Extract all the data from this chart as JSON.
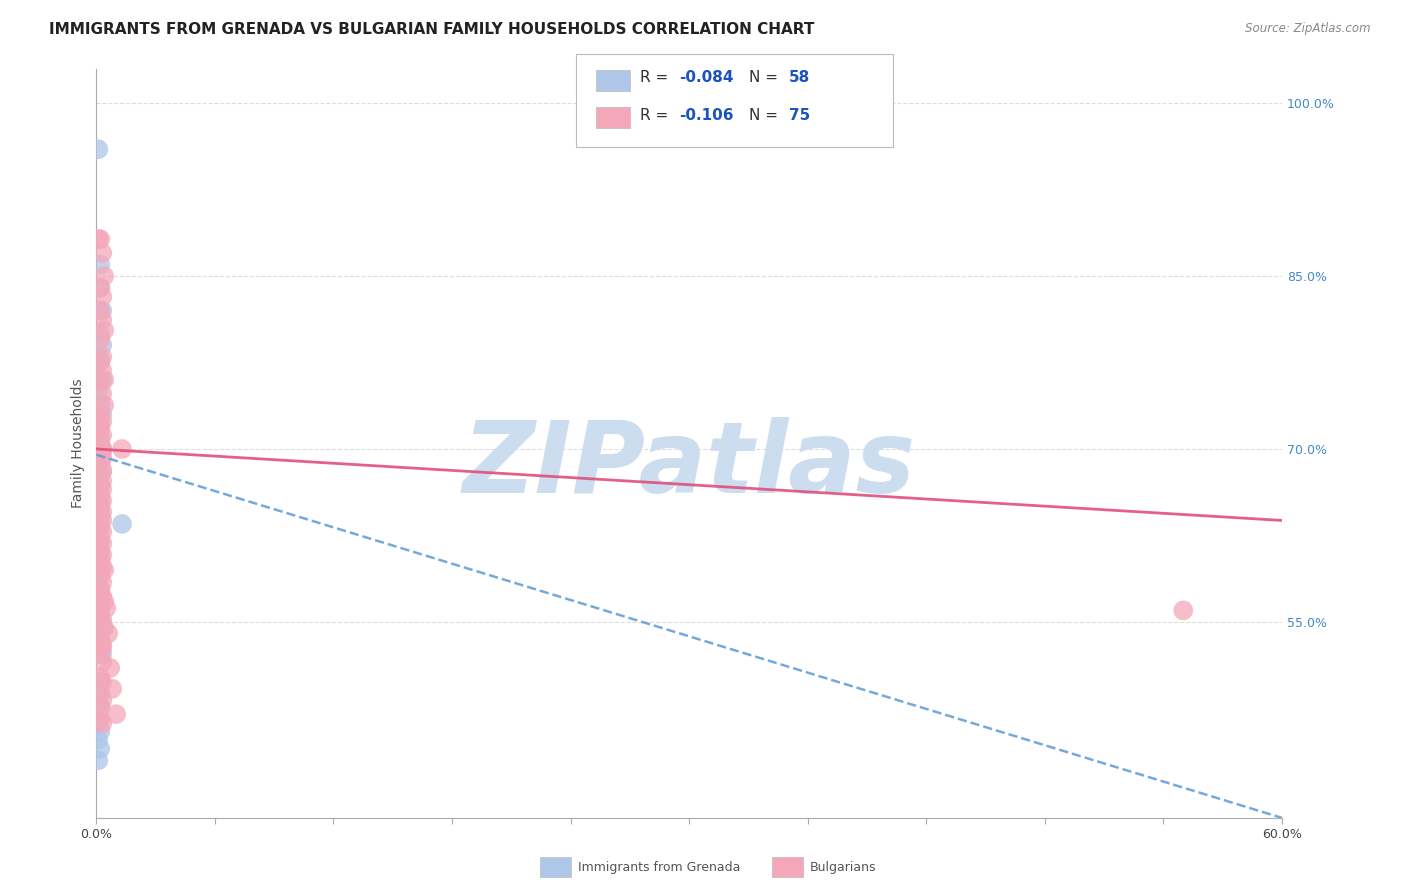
{
  "title": "IMMIGRANTS FROM GRENADA VS BULGARIAN FAMILY HOUSEHOLDS CORRELATION CHART",
  "source": "Source: ZipAtlas.com",
  "ylabel": "Family Households",
  "xlim": [
    0.0,
    0.6
  ],
  "ylim": [
    0.38,
    1.03
  ],
  "xticks": [
    0.0,
    0.06,
    0.12,
    0.18,
    0.24,
    0.3,
    0.36,
    0.42,
    0.48,
    0.54,
    0.6
  ],
  "xticklabels_show": [
    "0.0%",
    "60.0%"
  ],
  "xticklabels_pos": [
    0.0,
    0.6
  ],
  "yticks_right": [
    0.55,
    0.7,
    0.85,
    1.0
  ],
  "yticks_right_labels": [
    "55.0%",
    "70.0%",
    "85.0%",
    "100.0%"
  ],
  "series": [
    {
      "name": "Immigrants from Grenada",
      "R": -0.084,
      "N": 58,
      "color": "#aec6e8",
      "trend_color": "#5b9bd5",
      "trend_style": "dashed",
      "trend_x0": 0.0,
      "trend_y0": 0.695,
      "trend_x1": 0.6,
      "trend_y1": 0.38,
      "x": [
        0.001,
        0.002,
        0.002,
        0.003,
        0.001,
        0.002,
        0.003,
        0.001,
        0.002,
        0.003,
        0.001,
        0.002,
        0.003,
        0.001,
        0.002,
        0.003,
        0.001,
        0.002,
        0.001,
        0.002,
        0.002,
        0.003,
        0.001,
        0.002,
        0.001,
        0.002,
        0.001,
        0.002,
        0.001,
        0.002,
        0.001,
        0.002,
        0.001,
        0.002,
        0.001,
        0.002,
        0.002,
        0.001,
        0.002,
        0.001,
        0.002,
        0.001,
        0.002,
        0.001,
        0.002,
        0.003,
        0.001,
        0.002,
        0.003,
        0.013,
        0.002,
        0.001,
        0.002,
        0.001,
        0.002,
        0.001,
        0.002,
        0.001
      ],
      "y": [
        0.96,
        0.86,
        0.84,
        0.82,
        0.82,
        0.8,
        0.79,
        0.78,
        0.776,
        0.76,
        0.75,
        0.74,
        0.73,
        0.72,
        0.71,
        0.7,
        0.7,
        0.7,
        0.69,
        0.69,
        0.68,
        0.68,
        0.673,
        0.67,
        0.66,
        0.655,
        0.65,
        0.648,
        0.645,
        0.64,
        0.638,
        0.635,
        0.628,
        0.62,
        0.618,
        0.61,
        0.605,
        0.598,
        0.592,
        0.588,
        0.578,
        0.57,
        0.562,
        0.558,
        0.552,
        0.545,
        0.538,
        0.53,
        0.522,
        0.635,
        0.498,
        0.49,
        0.478,
        0.465,
        0.455,
        0.448,
        0.44,
        0.43
      ]
    },
    {
      "name": "Bulgarians",
      "R": -0.106,
      "N": 75,
      "color": "#f4a7b9",
      "trend_color": "#e0507a",
      "trend_style": "solid",
      "trend_x0": 0.0,
      "trend_y0": 0.7,
      "trend_x1": 0.6,
      "trend_y1": 0.638,
      "x": [
        0.001,
        0.002,
        0.003,
        0.004,
        0.002,
        0.003,
        0.002,
        0.003,
        0.004,
        0.002,
        0.003,
        0.002,
        0.003,
        0.004,
        0.002,
        0.003,
        0.004,
        0.002,
        0.003,
        0.002,
        0.003,
        0.002,
        0.003,
        0.002,
        0.003,
        0.002,
        0.003,
        0.002,
        0.003,
        0.002,
        0.003,
        0.002,
        0.003,
        0.002,
        0.003,
        0.002,
        0.003,
        0.002,
        0.003,
        0.002,
        0.003,
        0.002,
        0.003,
        0.002,
        0.003,
        0.004,
        0.002,
        0.003,
        0.002,
        0.003,
        0.004,
        0.005,
        0.002,
        0.003,
        0.004,
        0.006,
        0.002,
        0.003,
        0.002,
        0.003,
        0.007,
        0.002,
        0.003,
        0.008,
        0.002,
        0.003,
        0.002,
        0.01,
        0.002,
        0.003,
        0.002,
        0.003,
        0.013,
        0.003,
        0.55
      ],
      "y": [
        0.882,
        0.882,
        0.87,
        0.85,
        0.84,
        0.832,
        0.82,
        0.812,
        0.803,
        0.795,
        0.78,
        0.776,
        0.768,
        0.76,
        0.758,
        0.748,
        0.738,
        0.731,
        0.724,
        0.718,
        0.712,
        0.705,
        0.7,
        0.698,
        0.692,
        0.688,
        0.682,
        0.678,
        0.672,
        0.668,
        0.665,
        0.66,
        0.655,
        0.65,
        0.645,
        0.642,
        0.638,
        0.632,
        0.628,
        0.622,
        0.618,
        0.612,
        0.608,
        0.602,
        0.598,
        0.595,
        0.59,
        0.584,
        0.578,
        0.572,
        0.568,
        0.562,
        0.558,
        0.552,
        0.545,
        0.54,
        0.535,
        0.528,
        0.522,
        0.515,
        0.51,
        0.502,
        0.498,
        0.492,
        0.488,
        0.482,
        0.475,
        0.47,
        0.465,
        0.462,
        0.72,
        0.698,
        0.7,
        0.53,
        0.56
      ]
    }
  ],
  "watermark": "ZIPatlas",
  "watermark_color": "#ccddf0",
  "background_color": "#ffffff",
  "grid_color": "#dddddd",
  "title_fontsize": 11,
  "axis_label_fontsize": 10,
  "tick_fontsize": 9,
  "legend_R_color": "#1a52c0",
  "legend_N_color": "#1a52c0"
}
